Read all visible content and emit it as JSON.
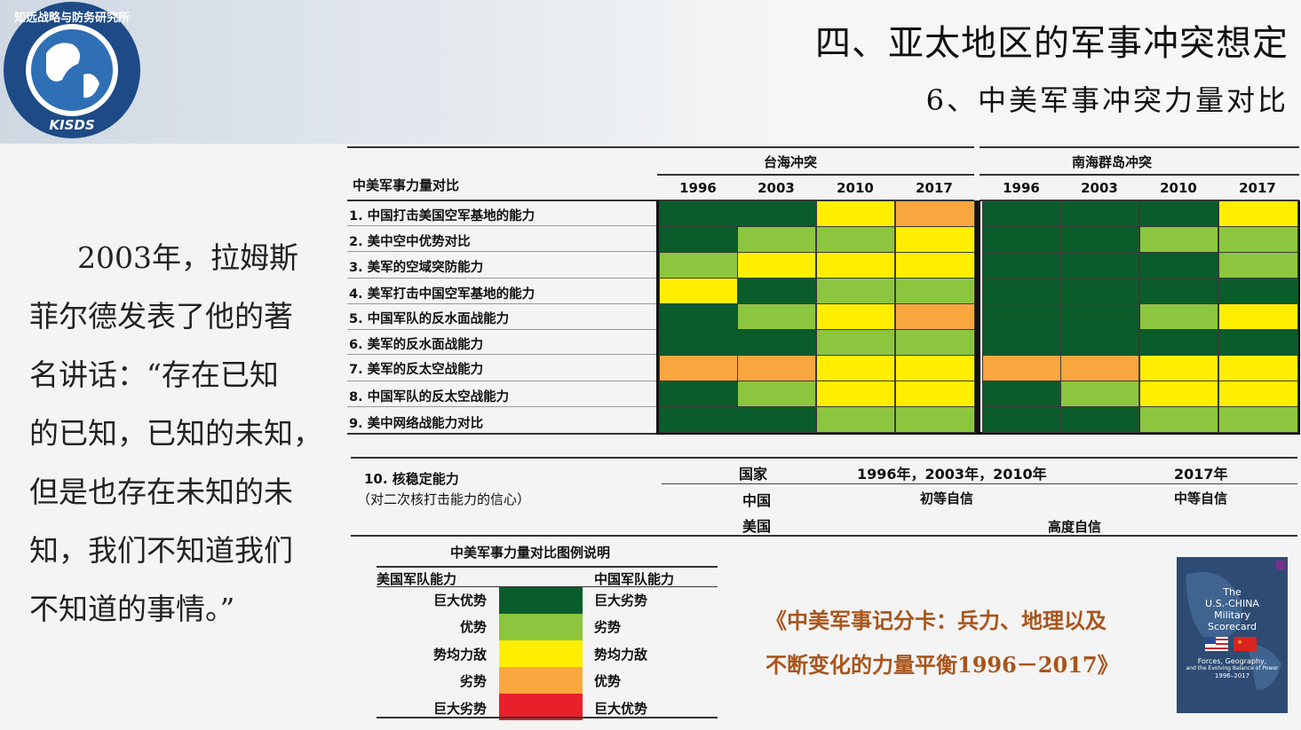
{
  "logo": {
    "text_top": "知远战略与防务研究所",
    "text_bottom": "KISDS"
  },
  "heading": {
    "title": "四、亚太地区的军事冲突想定",
    "subtitle": "6、中美军事冲突力量对比"
  },
  "quote_lines": [
    "2003年，拉姆斯",
    "菲尔德发表了他的著",
    "名讲话：“存在已知",
    "的已知，已知的未知，",
    "但是也存在未知的未",
    "知，我们不知道我们",
    "不知道的事情。”"
  ],
  "table": {
    "header_label": "中美军事力量对比",
    "groups": [
      "台海冲突",
      "南海群岛冲突"
    ],
    "years": [
      "1996",
      "2003",
      "2010",
      "2017"
    ],
    "rows": [
      {
        "label": "1.  中国打击美国空军基地的能力",
        "taiwan": [
          "DG",
          "DG",
          "Y",
          "O"
        ],
        "scs": [
          "DG",
          "DG",
          "DG",
          "Y"
        ]
      },
      {
        "label": "2.  美中空中优势对比",
        "taiwan": [
          "DG",
          "LG",
          "LG",
          "Y"
        ],
        "scs": [
          "DG",
          "DG",
          "LG",
          "LG"
        ]
      },
      {
        "label": "3.  美军的空域突防能力",
        "taiwan": [
          "LG",
          "Y",
          "Y",
          "Y"
        ],
        "scs": [
          "DG",
          "DG",
          "DG",
          "LG"
        ]
      },
      {
        "label": "4.  美军打击中国空军基地的能力",
        "taiwan": [
          "Y",
          "DG",
          "LG",
          "LG"
        ],
        "scs": [
          "DG",
          "DG",
          "DG",
          "DG"
        ]
      },
      {
        "label": "5.  中国军队的反水面战能力",
        "taiwan": [
          "DG",
          "LG",
          "Y",
          "O"
        ],
        "scs": [
          "DG",
          "DG",
          "LG",
          "Y"
        ]
      },
      {
        "label": "6.  美军的反水面战能力",
        "taiwan": [
          "DG",
          "DG",
          "LG",
          "LG"
        ],
        "scs": [
          "DG",
          "DG",
          "DG",
          "DG"
        ]
      },
      {
        "label": "7.  美军的反太空战能力",
        "taiwan": [
          "O",
          "O",
          "Y",
          "Y"
        ],
        "scs": [
          "O",
          "O",
          "Y",
          "Y"
        ]
      },
      {
        "label": "8.  中国军队的反太空战能力",
        "taiwan": [
          "DG",
          "LG",
          "Y",
          "Y"
        ],
        "scs": [
          "DG",
          "LG",
          "Y",
          "Y"
        ]
      },
      {
        "label": "9.  美中网络战能力对比",
        "taiwan": [
          "DG",
          "DG",
          "LG",
          "LG"
        ],
        "scs": [
          "DG",
          "DG",
          "LG",
          "LG"
        ]
      }
    ],
    "colors": {
      "DG": "#0a5d2a",
      "LG": "#8cc63f",
      "Y": "#ffee00",
      "O": "#f9a73e",
      "R": "#e8202a"
    }
  },
  "nuclear": {
    "label_line1": "10. 核稳定能力",
    "label_line2": "（对二次核打击能力的信心）",
    "col_country": "国家",
    "col_years": "1996年，2003年，2010年",
    "col_2017": "2017年",
    "china": "中国",
    "china_early": "初等自信",
    "china_2017": "中等自信",
    "usa": "美国",
    "usa_conf": "高度自信"
  },
  "legend": {
    "title": "中美军事力量对比图例说明",
    "us_header": "美国军队能力",
    "cn_header": "中国军队能力",
    "items": [
      {
        "us": "巨大优势",
        "cn": "巨大劣势",
        "color": "#0a5d2a"
      },
      {
        "us": "优势",
        "cn": "劣势",
        "color": "#8cc63f"
      },
      {
        "us": "势均力敌",
        "cn": "势均力敌",
        "color": "#ffee00"
      },
      {
        "us": "劣势",
        "cn": "优势",
        "color": "#f9a73e"
      },
      {
        "us": "巨大劣势",
        "cn": "巨大优势",
        "color": "#e8202a"
      }
    ]
  },
  "book_caption": {
    "line1": "《中美军事记分卡：兵力、地理以及",
    "line2": "不断变化的力量平衡1996－2017》"
  },
  "book_cover": {
    "line1": "The",
    "line2": "U.S.-CHINA",
    "line3": "Military",
    "line4": "Scorecard",
    "line5": "Forces, Geography,",
    "line6": "and the Evolving Balance of Power",
    "line7": "1996–2017"
  }
}
